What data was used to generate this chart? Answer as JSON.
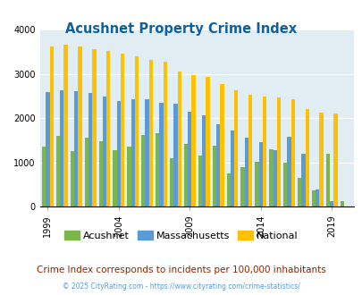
{
  "title": "Acushnet Property Crime Index",
  "title_color": "#1060a0",
  "years": [
    1999,
    2000,
    2001,
    2002,
    2003,
    2004,
    2005,
    2006,
    2007,
    2008,
    2009,
    2010,
    2011,
    2012,
    2013,
    2014,
    2015,
    2016,
    2017,
    2018,
    2019,
    2020
  ],
  "acushnet": [
    1350,
    1600,
    1250,
    1550,
    1480,
    1270,
    1350,
    1620,
    1650,
    1100,
    1420,
    1150,
    1380,
    750,
    880,
    1010,
    1300,
    980,
    650,
    360,
    1190,
    120
  ],
  "massachusetts": [
    2580,
    2620,
    2600,
    2560,
    2490,
    2380,
    2420,
    2430,
    2350,
    2320,
    2150,
    2070,
    1860,
    1710,
    1560,
    1460,
    1270,
    1570,
    1200,
    380,
    130,
    0
  ],
  "national": [
    3620,
    3660,
    3620,
    3560,
    3510,
    3450,
    3390,
    3310,
    3280,
    3050,
    2970,
    2920,
    2760,
    2620,
    2530,
    2490,
    2470,
    2420,
    2200,
    2120,
    2110,
    0
  ],
  "acushnet_color": "#7ab648",
  "massachusetts_color": "#5b9bd5",
  "national_color": "#ffc000",
  "bg_color": "#e0eef4",
  "ylim": [
    0,
    4000
  ],
  "yticks": [
    0,
    1000,
    2000,
    3000,
    4000
  ],
  "xlabel_ticks": [
    1999,
    2004,
    2009,
    2014,
    2019
  ],
  "subtitle": "Crime Index corresponds to incidents per 100,000 inhabitants",
  "footer": "© 2025 CityRating.com - https://www.cityrating.com/crime-statistics/",
  "subtitle_color": "#8b2500",
  "footer_color": "#5b9bd5",
  "legend_labels": [
    "Acushnet",
    "Massachusetts",
    "National"
  ]
}
